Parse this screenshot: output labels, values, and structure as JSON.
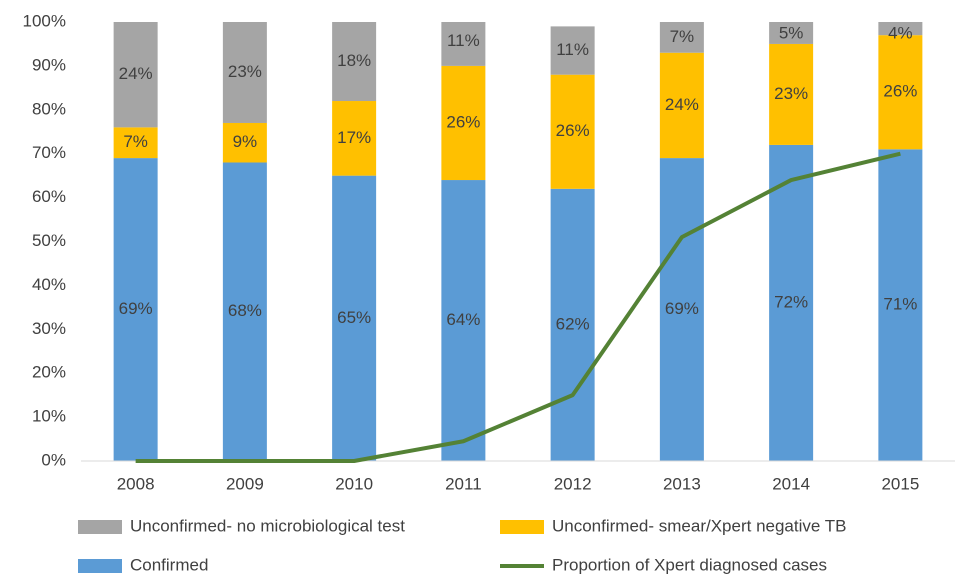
{
  "chart_data": {
    "type": "stacked-bar-line",
    "categories": [
      "2008",
      "2009",
      "2010",
      "2011",
      "2012",
      "2013",
      "2014",
      "2015"
    ],
    "series": [
      {
        "name": "Confirmed",
        "color": "#5b9bd5",
        "values": [
          69,
          68,
          65,
          64,
          62,
          69,
          72,
          71
        ],
        "value_labels": [
          "69%",
          "68%",
          "65%",
          "64%",
          "62%",
          "69%",
          "72%",
          "71%"
        ]
      },
      {
        "name": "Unconfirmed- smear/Xpert negative TB",
        "color": "#ffc000",
        "values": [
          7,
          9,
          17,
          26,
          26,
          24,
          23,
          26
        ],
        "value_labels": [
          "7%",
          "9%",
          "17%",
          "26%",
          "26%",
          "24%",
          "23%",
          "26%"
        ]
      },
      {
        "name": "Unconfirmed- no microbiological test",
        "color": "#a5a5a5",
        "values": [
          24,
          23,
          18,
          11,
          11,
          7,
          5,
          4
        ],
        "value_labels": [
          "24%",
          "23%",
          "18%",
          "11%",
          "11%",
          "7%",
          "5%",
          "4%"
        ]
      },
      {
        "name": "Proportion of Xpert diagnosed cases",
        "color": "#548235",
        "type": "line",
        "values": [
          0,
          0,
          0,
          4.5,
          15,
          51,
          64,
          70
        ]
      }
    ],
    "ylim": [
      0,
      100
    ],
    "yticks": [
      {
        "value": 0,
        "label": "0%"
      },
      {
        "value": 10,
        "label": "10%"
      },
      {
        "value": 20,
        "label": "20%"
      },
      {
        "value": 30,
        "label": "30%"
      },
      {
        "value": 40,
        "label": "40%"
      },
      {
        "value": 50,
        "label": "50%"
      },
      {
        "value": 60,
        "label": "60%"
      },
      {
        "value": 70,
        "label": "70%"
      },
      {
        "value": 80,
        "label": "80%"
      },
      {
        "value": 90,
        "label": "90%"
      },
      {
        "value": 100,
        "label": "100%"
      }
    ],
    "grid": false
  }
}
